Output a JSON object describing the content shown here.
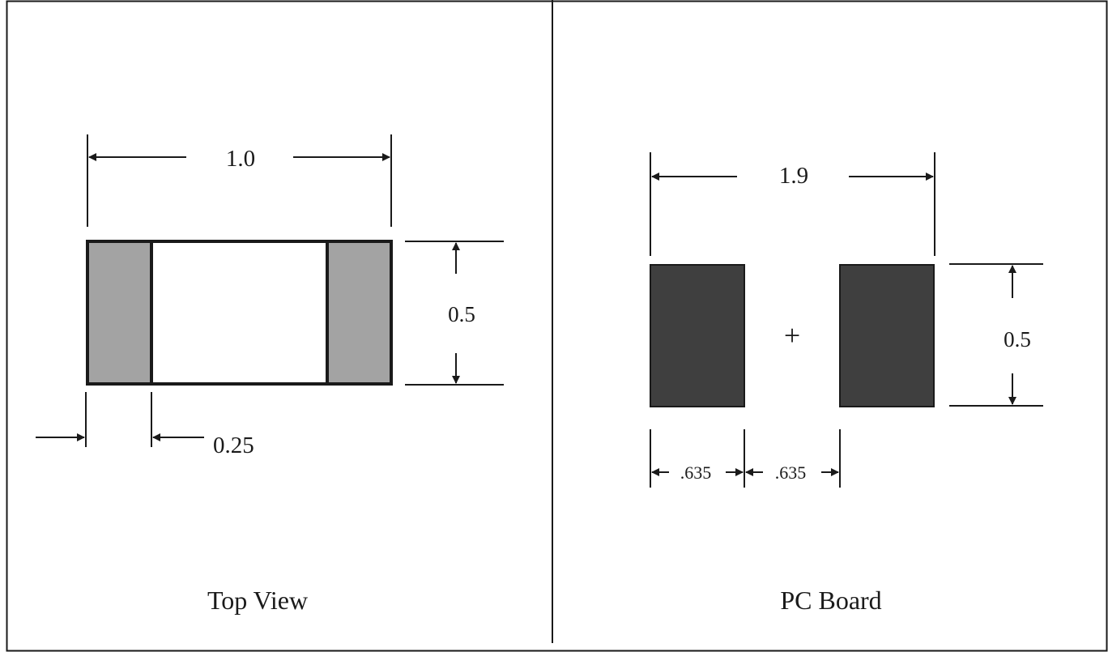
{
  "panels": {
    "top_view": {
      "title": "Top View",
      "length_label": "1.0",
      "height_label": "0.5",
      "terminal_label": "0.25"
    },
    "pc_board": {
      "title": "PC Board",
      "span_label": "1.9",
      "pad_height_label": "0.5",
      "pad_width_label": ".635",
      "gap_label": ".635",
      "center_mark": "+"
    }
  },
  "colors": {
    "frame": "#1a1a1a",
    "terminal_fill": "#a3a3a3",
    "pad_fill": "#3f3f3f",
    "body_fill": "#ffffff"
  }
}
